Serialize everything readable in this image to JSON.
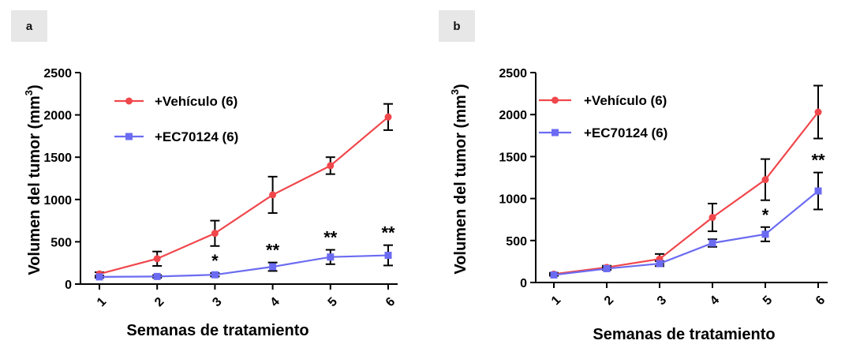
{
  "chart_data": [
    {
      "panel": "a",
      "type": "line",
      "xlabel": "Semanas de tratamiento",
      "ylabel": "Volumen del tumor (mm³)",
      "ylabel_main": "Volumen del tumor (mm",
      "ylabel_sup": "3",
      "ylabel_close": ")",
      "x": [
        1,
        2,
        3,
        4,
        5,
        6
      ],
      "x_tick_labels": [
        "1",
        "2",
        "3",
        "4",
        "5",
        "6"
      ],
      "ylim": [
        0,
        2500
      ],
      "y_ticks": [
        0,
        500,
        1000,
        1500,
        2000,
        2500
      ],
      "y_tick_labels": [
        "0",
        "500",
        "1000",
        "1500",
        "2000",
        "2500"
      ],
      "legend_position": "top-left",
      "series": [
        {
          "name": "+Vehículo (6)",
          "color": "#f0474c",
          "marker": "circle",
          "values": [
            120,
            300,
            600,
            1055,
            1400,
            1975
          ],
          "errors": [
            20,
            85,
            150,
            215,
            100,
            155
          ]
        },
        {
          "name": "+EC70124 (6)",
          "color": "#6b6bf2",
          "marker": "square",
          "values": [
            85,
            90,
            110,
            205,
            320,
            340
          ],
          "errors": [
            10,
            15,
            20,
            50,
            85,
            120
          ]
        }
      ],
      "annotations": [
        {
          "x": 3,
          "text": "*"
        },
        {
          "x": 4,
          "text": "**"
        },
        {
          "x": 5,
          "text": "**"
        },
        {
          "x": 6,
          "text": "**"
        }
      ]
    },
    {
      "panel": "b",
      "type": "line",
      "xlabel": "Semanas de tratamiento",
      "ylabel": "Volumen del tumor (mm³)",
      "ylabel_main": "Volumen del tumor (mm",
      "ylabel_sup": "3",
      "ylabel_close": ")",
      "x": [
        1,
        2,
        3,
        4,
        5,
        6
      ],
      "x_tick_labels": [
        "1",
        "2",
        "3",
        "4",
        "5",
        "6"
      ],
      "ylim": [
        0,
        2500
      ],
      "y_ticks": [
        0,
        500,
        1000,
        1500,
        2000,
        2500
      ],
      "y_tick_labels": [
        "0",
        "500",
        "1000",
        "1500",
        "2000",
        "2500"
      ],
      "legend_position": "top-left",
      "series": [
        {
          "name": "+Vehículo (6)",
          "color": "#f0474c",
          "marker": "circle",
          "values": [
            100,
            180,
            280,
            775,
            1225,
            2030
          ],
          "errors": [
            15,
            20,
            60,
            165,
            245,
            315
          ]
        },
        {
          "name": "+EC70124 (6)",
          "color": "#6b6bf2",
          "marker": "square",
          "values": [
            90,
            165,
            225,
            470,
            575,
            1090
          ],
          "errors": [
            10,
            15,
            30,
            45,
            85,
            220
          ]
        }
      ],
      "annotations": [
        {
          "x": 5,
          "text": "*"
        },
        {
          "x": 6,
          "text": "**"
        }
      ]
    }
  ],
  "panels": {
    "a_label": "a",
    "b_label": "b"
  }
}
